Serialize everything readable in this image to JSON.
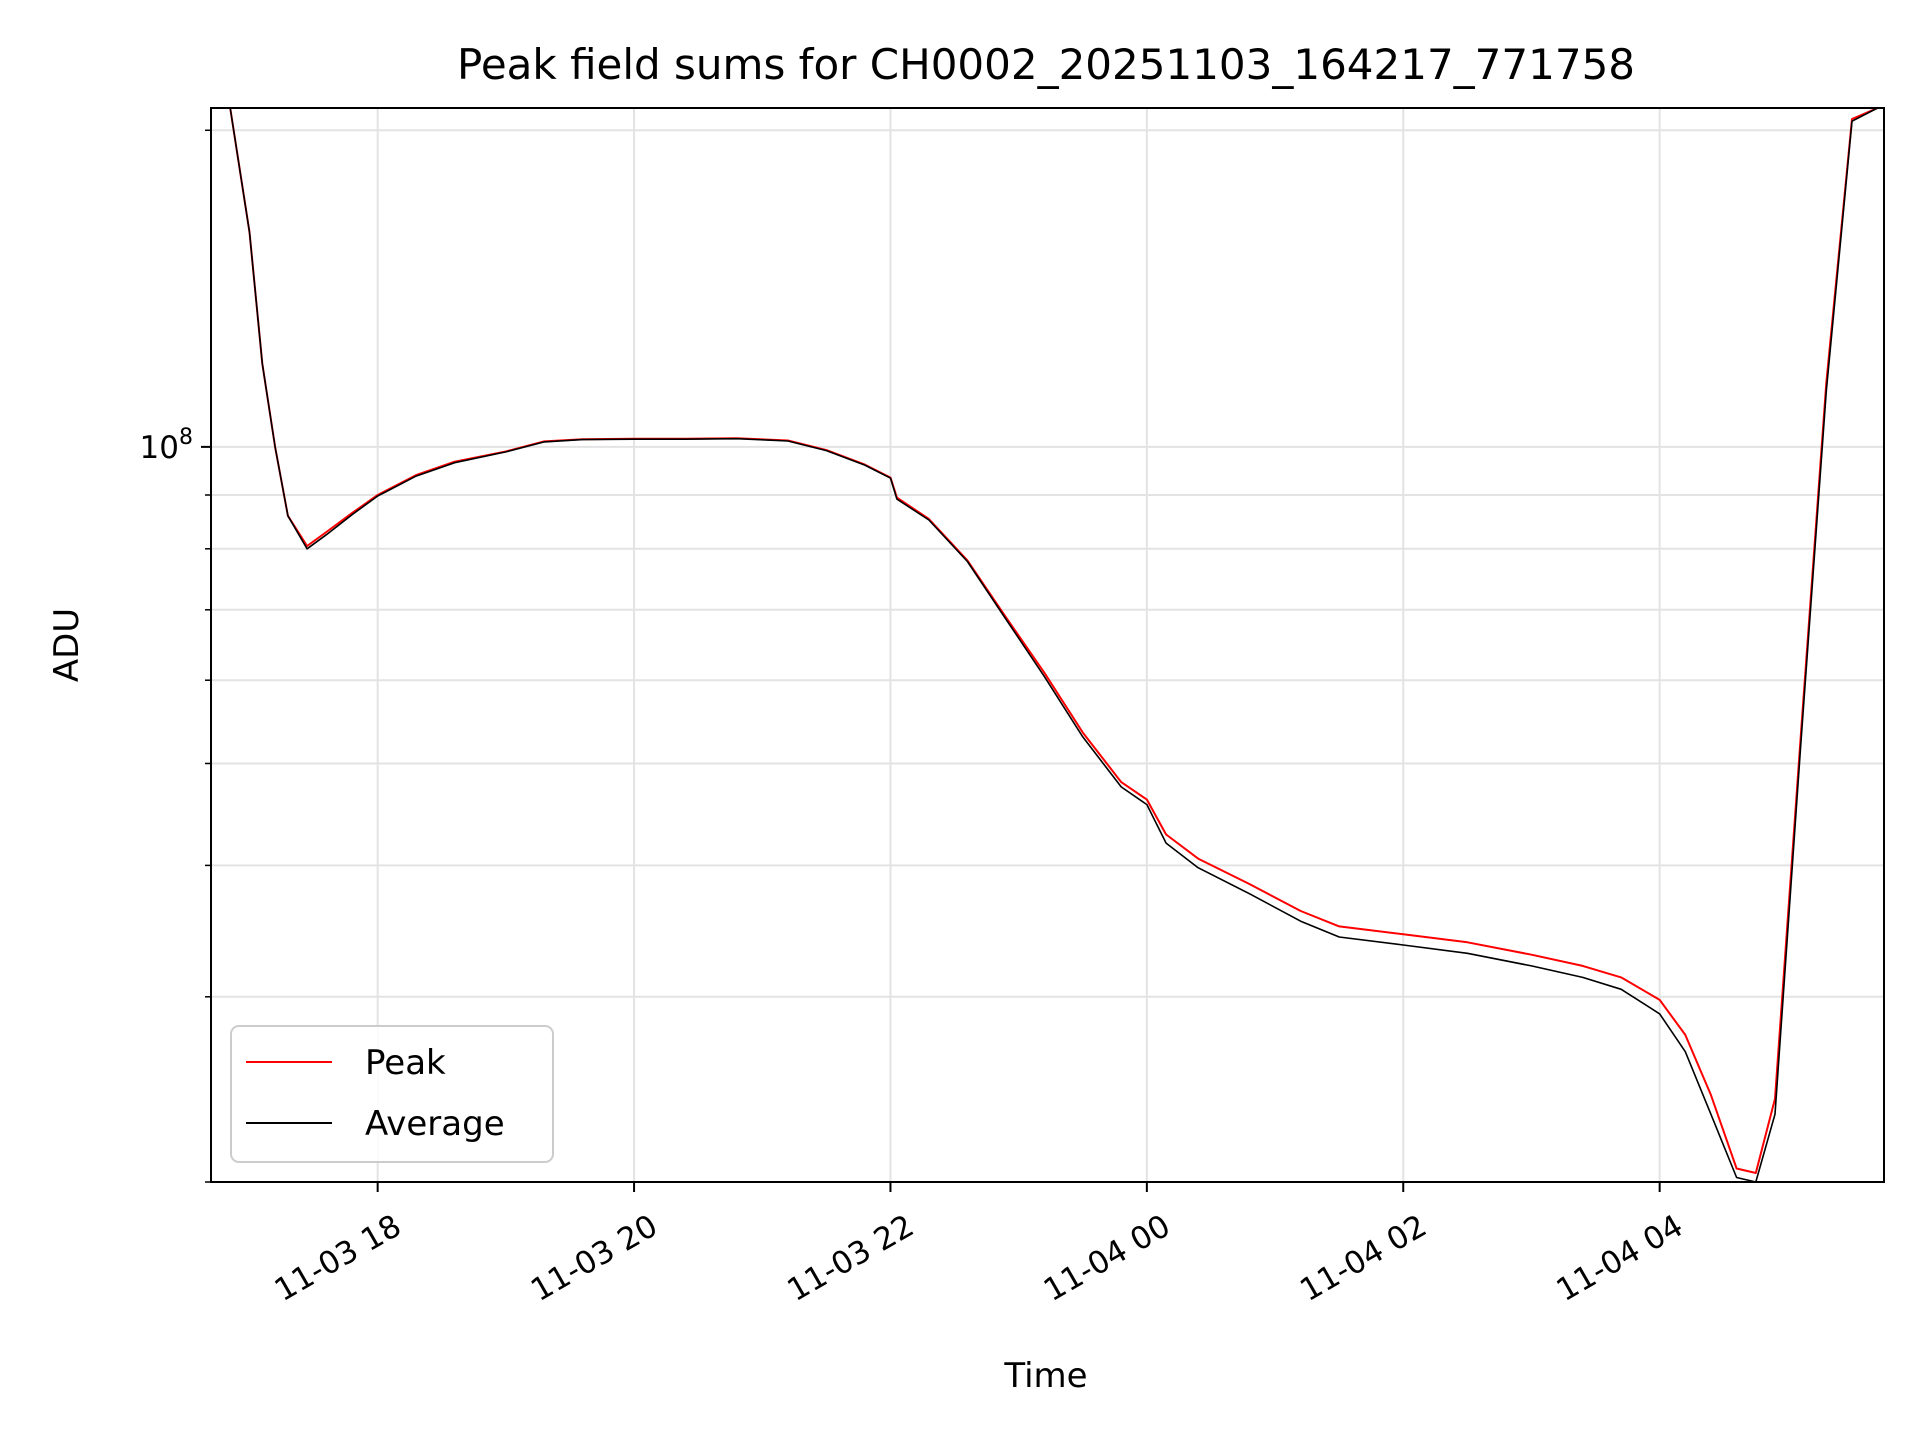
{
  "chart_data": {
    "type": "line",
    "title": "Peak field sums for CH0002_20251103_164217_771758",
    "xlabel": "Time",
    "ylabel": "ADU",
    "yscale": "log",
    "ylim": [
      20000000,
      210000000
    ],
    "xlim_hours": [
      16.7,
      29.75
    ],
    "grid": true,
    "legend_position": "lower-left",
    "x_ticks": [
      {
        "hours": 18,
        "label": "11-03 18"
      },
      {
        "hours": 20,
        "label": "11-03 20"
      },
      {
        "hours": 22,
        "label": "11-03 22"
      },
      {
        "hours": 24,
        "label": "11-04 00"
      },
      {
        "hours": 26,
        "label": "11-04 02"
      },
      {
        "hours": 28,
        "label": "11-04 04"
      }
    ],
    "y_major_ticks": [
      {
        "value": 100000000,
        "base": "10",
        "exp": "8"
      }
    ],
    "y_minor_ticks": [
      20000000,
      30000000,
      40000000,
      50000000,
      60000000,
      70000000,
      80000000,
      90000000,
      200000000
    ],
    "x_hours": [
      16.85,
      17.0,
      17.1,
      17.2,
      17.3,
      17.45,
      17.6,
      17.8,
      18.0,
      18.3,
      18.6,
      19.0,
      19.3,
      19.6,
      20.0,
      20.4,
      20.8,
      21.2,
      21.5,
      21.8,
      22.0,
      22.05,
      22.3,
      22.6,
      22.9,
      23.2,
      23.5,
      23.8,
      24.0,
      24.15,
      24.4,
      24.8,
      25.2,
      25.5,
      26.0,
      26.5,
      27.0,
      27.4,
      27.7,
      28.0,
      28.2,
      28.4,
      28.6,
      28.75,
      28.9,
      29.1,
      29.3,
      29.5,
      29.7
    ],
    "series": [
      {
        "name": "Peak",
        "color": "#ff0000",
        "values": [
          210000000,
          160000000,
          120000000,
          100000000,
          86000000,
          80500000,
          83000000,
          86500000,
          90000000,
          94000000,
          96800000,
          99000000,
          101200000,
          101700000,
          101800000,
          101800000,
          101900000,
          101400000,
          99300000,
          96200000,
          93500000,
          89500000,
          85400000,
          78000000,
          68900000,
          61000000,
          53500000,
          48000000,
          46200000,
          42800000,
          40600000,
          38400000,
          36200000,
          35000000,
          34400000,
          33800000,
          32900000,
          32100000,
          31300000,
          29800000,
          27600000,
          24200000,
          20600000,
          20400000,
          24000000,
          53000000,
          115000000,
          205000000,
          210000000
        ]
      },
      {
        "name": "Average",
        "color": "#000000",
        "values": [
          210000000,
          160000000,
          120000000,
          100000000,
          86000000,
          80000000,
          82500000,
          86200000,
          89800000,
          93800000,
          96600000,
          98900000,
          101100000,
          101600000,
          101700000,
          101700000,
          101800000,
          101300000,
          99200000,
          96100000,
          93400000,
          89200000,
          85200000,
          77800000,
          68600000,
          60500000,
          53000000,
          47500000,
          45700000,
          42000000,
          39800000,
          37600000,
          35400000,
          34200000,
          33600000,
          33000000,
          32100000,
          31300000,
          30500000,
          28900000,
          26600000,
          23200000,
          20200000,
          20000000,
          23200000,
          52000000,
          113000000,
          204000000,
          210000000
        ]
      }
    ]
  }
}
